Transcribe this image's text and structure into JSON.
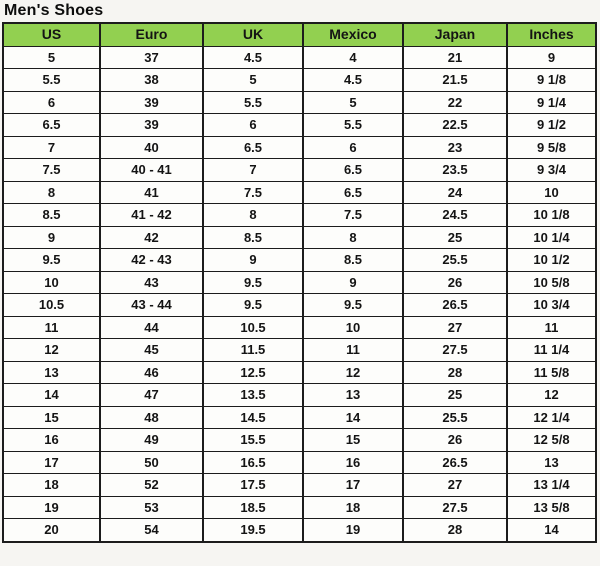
{
  "page": {
    "title": "Men's Shoes"
  },
  "colors": {
    "page_bg": "#f6f5f2",
    "header_bg": "#92d050",
    "cell_bg": "#fdfdfb",
    "border": "#1c1c1c",
    "text": "#141414"
  },
  "chart_data": {
    "type": "table",
    "title": "Men's Shoes",
    "columns": [
      "US",
      "Euro",
      "UK",
      "Mexico",
      "Japan",
      "Inches"
    ],
    "rows": [
      [
        "5",
        "37",
        "4.5",
        "4",
        "21",
        "9"
      ],
      [
        "5.5",
        "38",
        "5",
        "4.5",
        "21.5",
        "9 1/8"
      ],
      [
        "6",
        "39",
        "5.5",
        "5",
        "22",
        "9 1/4"
      ],
      [
        "6.5",
        "39",
        "6",
        "5.5",
        "22.5",
        "9 1/2"
      ],
      [
        "7",
        "40",
        "6.5",
        "6",
        "23",
        "9 5/8"
      ],
      [
        "7.5",
        "40 - 41",
        "7",
        "6.5",
        "23.5",
        "9 3/4"
      ],
      [
        "8",
        "41",
        "7.5",
        "6.5",
        "24",
        "10"
      ],
      [
        "8.5",
        "41 - 42",
        "8",
        "7.5",
        "24.5",
        "10 1/8"
      ],
      [
        "9",
        "42",
        "8.5",
        "8",
        "25",
        "10 1/4"
      ],
      [
        "9.5",
        "42 - 43",
        "9",
        "8.5",
        "25.5",
        "10 1/2"
      ],
      [
        "10",
        "43",
        "9.5",
        "9",
        "26",
        "10 5/8"
      ],
      [
        "10.5",
        "43 - 44",
        "9.5",
        "9.5",
        "26.5",
        "10 3/4"
      ],
      [
        "11",
        "44",
        "10.5",
        "10",
        "27",
        "11"
      ],
      [
        "12",
        "45",
        "11.5",
        "11",
        "27.5",
        "11 1/4"
      ],
      [
        "13",
        "46",
        "12.5",
        "12",
        "28",
        "11 5/8"
      ],
      [
        "14",
        "47",
        "13.5",
        "13",
        "25",
        "12"
      ],
      [
        "15",
        "48",
        "14.5",
        "14",
        "25.5",
        "12 1/4"
      ],
      [
        "16",
        "49",
        "15.5",
        "15",
        "26",
        "12 5/8"
      ],
      [
        "17",
        "50",
        "16.5",
        "16",
        "26.5",
        "13"
      ],
      [
        "18",
        "52",
        "17.5",
        "17",
        "27",
        "13 1/4"
      ],
      [
        "19",
        "53",
        "18.5",
        "18",
        "27.5",
        "13 5/8"
      ],
      [
        "20",
        "54",
        "19.5",
        "19",
        "28",
        "14"
      ]
    ]
  }
}
